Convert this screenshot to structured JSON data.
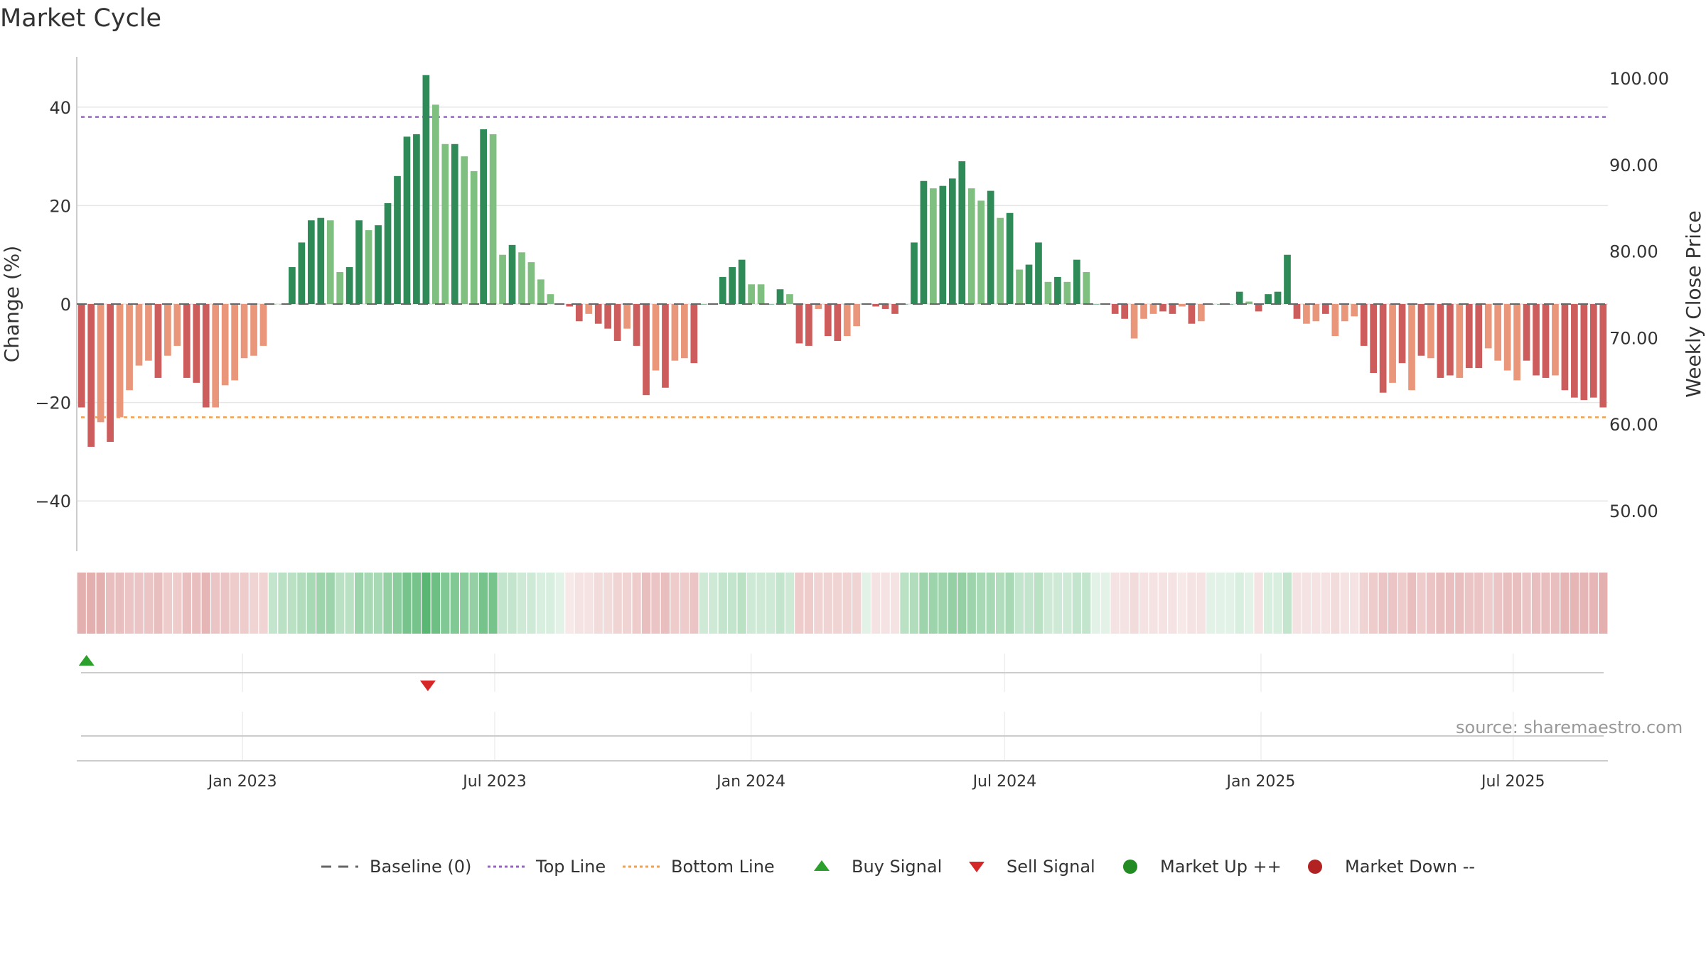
{
  "page": {
    "title": "Market Cycle",
    "source": "source: sharemaestro.com"
  },
  "colors": {
    "up_dark": "#2e8b57",
    "up_light": "#7fbf7f",
    "down_dark": "#cd5c5c",
    "down_light": "#e9967a",
    "top_line": "#9467bd",
    "bottom_line": "#f0a050",
    "buy": "#2ca02c",
    "sell": "#d62728",
    "market_up": "#228b22",
    "market_down": "#b22222",
    "baseline": "#666666",
    "grid": "#e6e6e6"
  },
  "legend": [
    {
      "label": "Baseline (0)",
      "symbol": "baseline"
    },
    {
      "label": "Top Line",
      "symbol": "top"
    },
    {
      "label": "Bottom Line",
      "symbol": "bottom"
    },
    {
      "label": "Buy Signal",
      "symbol": "buy"
    },
    {
      "label": "Sell Signal",
      "symbol": "sell"
    },
    {
      "label": "Market Up ++",
      "symbol": "mup"
    },
    {
      "label": "Market Down --",
      "symbol": "mdown"
    }
  ],
  "chart_data": {
    "type": "bar",
    "title": "Market Cycle",
    "ylabel": "Change (%)",
    "y2label": "Weekly Close Price",
    "ylim": [
      -50,
      50
    ],
    "y_ticks": [
      40,
      20,
      0,
      -20,
      -40
    ],
    "y_tick_labels": [
      "40",
      "20",
      "0",
      "−20",
      "−40"
    ],
    "y2_ticks": [
      100,
      90,
      80,
      70,
      60,
      50
    ],
    "y2_tick_labels": [
      "100.00",
      "90.00",
      "80.00",
      "70.00",
      "60.00",
      "50.00"
    ],
    "x_range": [
      "2022-09-04",
      "2025-09-07"
    ],
    "x_ticks": [
      "2023-01-01",
      "2023-07-01",
      "2024-01-01",
      "2024-07-01",
      "2025-01-01",
      "2025-07-01"
    ],
    "x_tick_labels": [
      "Jan 2023",
      "Jul 2023",
      "Jan 2024",
      "Jul 2024",
      "Jan 2025",
      "Jul 2025"
    ],
    "grid": true,
    "legend_position": "bottom",
    "top_line": 38,
    "bottom_line": -23,
    "baseline": 0,
    "series": [
      {
        "start_date": "2022-09-04",
        "interval_days": 7,
        "values": [
          -21,
          -29,
          -24,
          -28,
          -23,
          -17.5,
          -12.5,
          -11.5,
          -15,
          -10.5,
          -8.5,
          -15,
          -16,
          -21,
          -21,
          -16.5,
          -15.5,
          -11,
          -10.5,
          -8.5,
          0,
          0,
          7.5,
          12.5,
          17,
          17.5,
          17,
          6.5,
          7.5,
          17,
          15,
          16,
          20.5,
          26,
          34,
          34.5,
          46.5,
          40.5,
          32.5,
          32.5,
          30,
          27,
          35.5,
          34.5,
          10,
          12,
          10.5,
          8.5,
          5,
          2,
          0,
          -0.5,
          -3.5,
          -2,
          -4,
          -5,
          -7.5,
          -5,
          -8.5,
          -18.5,
          -13.5,
          -17,
          -11.5,
          -11,
          -12,
          0,
          0,
          5.5,
          7.5,
          9,
          4,
          4,
          0,
          3,
          2,
          -8,
          -8.5,
          -1,
          -6.5,
          -7.5,
          -6.5,
          -4.5,
          0,
          -0.5,
          -1,
          -2,
          0,
          12.5,
          25,
          23.5,
          24,
          25.5,
          29,
          23.5,
          21,
          23,
          17.5,
          18.5,
          7,
          8,
          12.5,
          4.5,
          5.5,
          4.5,
          9,
          6.5,
          0,
          0,
          -2,
          -3,
          -7,
          -3,
          -2,
          -1.5,
          -2,
          -0.5,
          -4,
          -3.5,
          0,
          0,
          0,
          2.5,
          0.5,
          -1.5,
          2,
          2.5,
          10,
          -3,
          -4,
          -3.5,
          -2,
          -6.5,
          -3.5,
          -2.5,
          -8.5,
          -14,
          -18,
          -16,
          -12,
          -17.5,
          -10.5,
          -11,
          -15,
          -14.5,
          -15,
          -13,
          -13,
          -9,
          -11.5,
          -13.5,
          -15.5,
          -11.5,
          -14.5,
          -15,
          -14.5,
          -17.5,
          -19,
          -19.5,
          -19,
          -21
        ],
        "shades": [
          "D",
          "D",
          "L",
          "D",
          "L",
          "L",
          "L",
          "L",
          "D",
          "L",
          "L",
          "D",
          "D",
          "D",
          "L",
          "L",
          "L",
          "L",
          "L",
          "L",
          "L",
          "L",
          "D",
          "D",
          "D",
          "D",
          "L",
          "L",
          "D",
          "D",
          "L",
          "D",
          "D",
          "D",
          "D",
          "D",
          "D",
          "L",
          "L",
          "D",
          "L",
          "L",
          "D",
          "L",
          "L",
          "D",
          "L",
          "L",
          "L",
          "L",
          "D",
          "D",
          "D",
          "L",
          "D",
          "D",
          "D",
          "L",
          "D",
          "D",
          "L",
          "D",
          "L",
          "L",
          "D",
          "D",
          "D",
          "D",
          "D",
          "D",
          "L",
          "L",
          "D",
          "D",
          "L",
          "D",
          "D",
          "L",
          "D",
          "D",
          "L",
          "L",
          "D",
          "D",
          "D",
          "D",
          "D",
          "D",
          "D",
          "L",
          "D",
          "D",
          "D",
          "L",
          "L",
          "D",
          "L",
          "D",
          "L",
          "D",
          "D",
          "L",
          "D",
          "L",
          "D",
          "L",
          "D",
          "D",
          "D",
          "D",
          "L",
          "L",
          "L",
          "D",
          "D",
          "L",
          "D",
          "L",
          "D",
          "D",
          "D",
          "D",
          "L",
          "D",
          "D",
          "D",
          "D",
          "D",
          "L",
          "L",
          "D",
          "L",
          "L",
          "L",
          "D",
          "D",
          "D",
          "L",
          "D",
          "L",
          "D",
          "L",
          "D",
          "D",
          "L",
          "D",
          "D",
          "L",
          "L",
          "L",
          "L",
          "D",
          "D",
          "D",
          "L",
          "D",
          "D",
          "D",
          "D",
          "D",
          "D",
          "D",
          "L",
          "D"
        ],
        "band": [
          0.55,
          0.55,
          0.55,
          0.45,
          0.45,
          0.4,
          0.4,
          0.4,
          0.45,
          0.35,
          0.35,
          0.45,
          0.45,
          0.5,
          0.4,
          0.4,
          0.35,
          0.35,
          0.3,
          0.3,
          0.3,
          0.35,
          0.35,
          0.4,
          0.45,
          0.5,
          0.5,
          0.35,
          0.35,
          0.5,
          0.45,
          0.45,
          0.55,
          0.6,
          0.7,
          0.7,
          0.85,
          0.75,
          0.65,
          0.65,
          0.6,
          0.55,
          0.7,
          0.7,
          0.3,
          0.3,
          0.25,
          0.25,
          0.2,
          0.2,
          0.15,
          0.15,
          0.2,
          0.2,
          0.25,
          0.25,
          0.3,
          0.3,
          0.35,
          0.45,
          0.4,
          0.45,
          0.35,
          0.35,
          0.4,
          0.25,
          0.25,
          0.3,
          0.3,
          0.35,
          0.25,
          0.25,
          0.25,
          0.3,
          0.25,
          0.35,
          0.35,
          0.3,
          0.3,
          0.3,
          0.3,
          0.3,
          0.15,
          0.2,
          0.2,
          0.2,
          0.35,
          0.4,
          0.5,
          0.5,
          0.5,
          0.55,
          0.55,
          0.5,
          0.45,
          0.45,
          0.4,
          0.45,
          0.3,
          0.3,
          0.35,
          0.25,
          0.25,
          0.25,
          0.3,
          0.3,
          0.15,
          0.15,
          0.2,
          0.2,
          0.25,
          0.2,
          0.2,
          0.2,
          0.2,
          0.15,
          0.2,
          0.2,
          0.15,
          0.15,
          0.15,
          0.2,
          0.15,
          0.2,
          0.2,
          0.2,
          0.3,
          0.2,
          0.2,
          0.2,
          0.2,
          0.25,
          0.2,
          0.2,
          0.3,
          0.35,
          0.4,
          0.4,
          0.35,
          0.45,
          0.35,
          0.4,
          0.45,
          0.45,
          0.45,
          0.4,
          0.4,
          0.35,
          0.4,
          0.45,
          0.45,
          0.4,
          0.45,
          0.45,
          0.45,
          0.5,
          0.5,
          0.5,
          0.5,
          0.55
        ]
      }
    ],
    "buy_signals": [
      "2022-09-11"
    ],
    "sell_signals": [
      "2023-05-14"
    ],
    "market_up": [],
    "market_down": []
  }
}
